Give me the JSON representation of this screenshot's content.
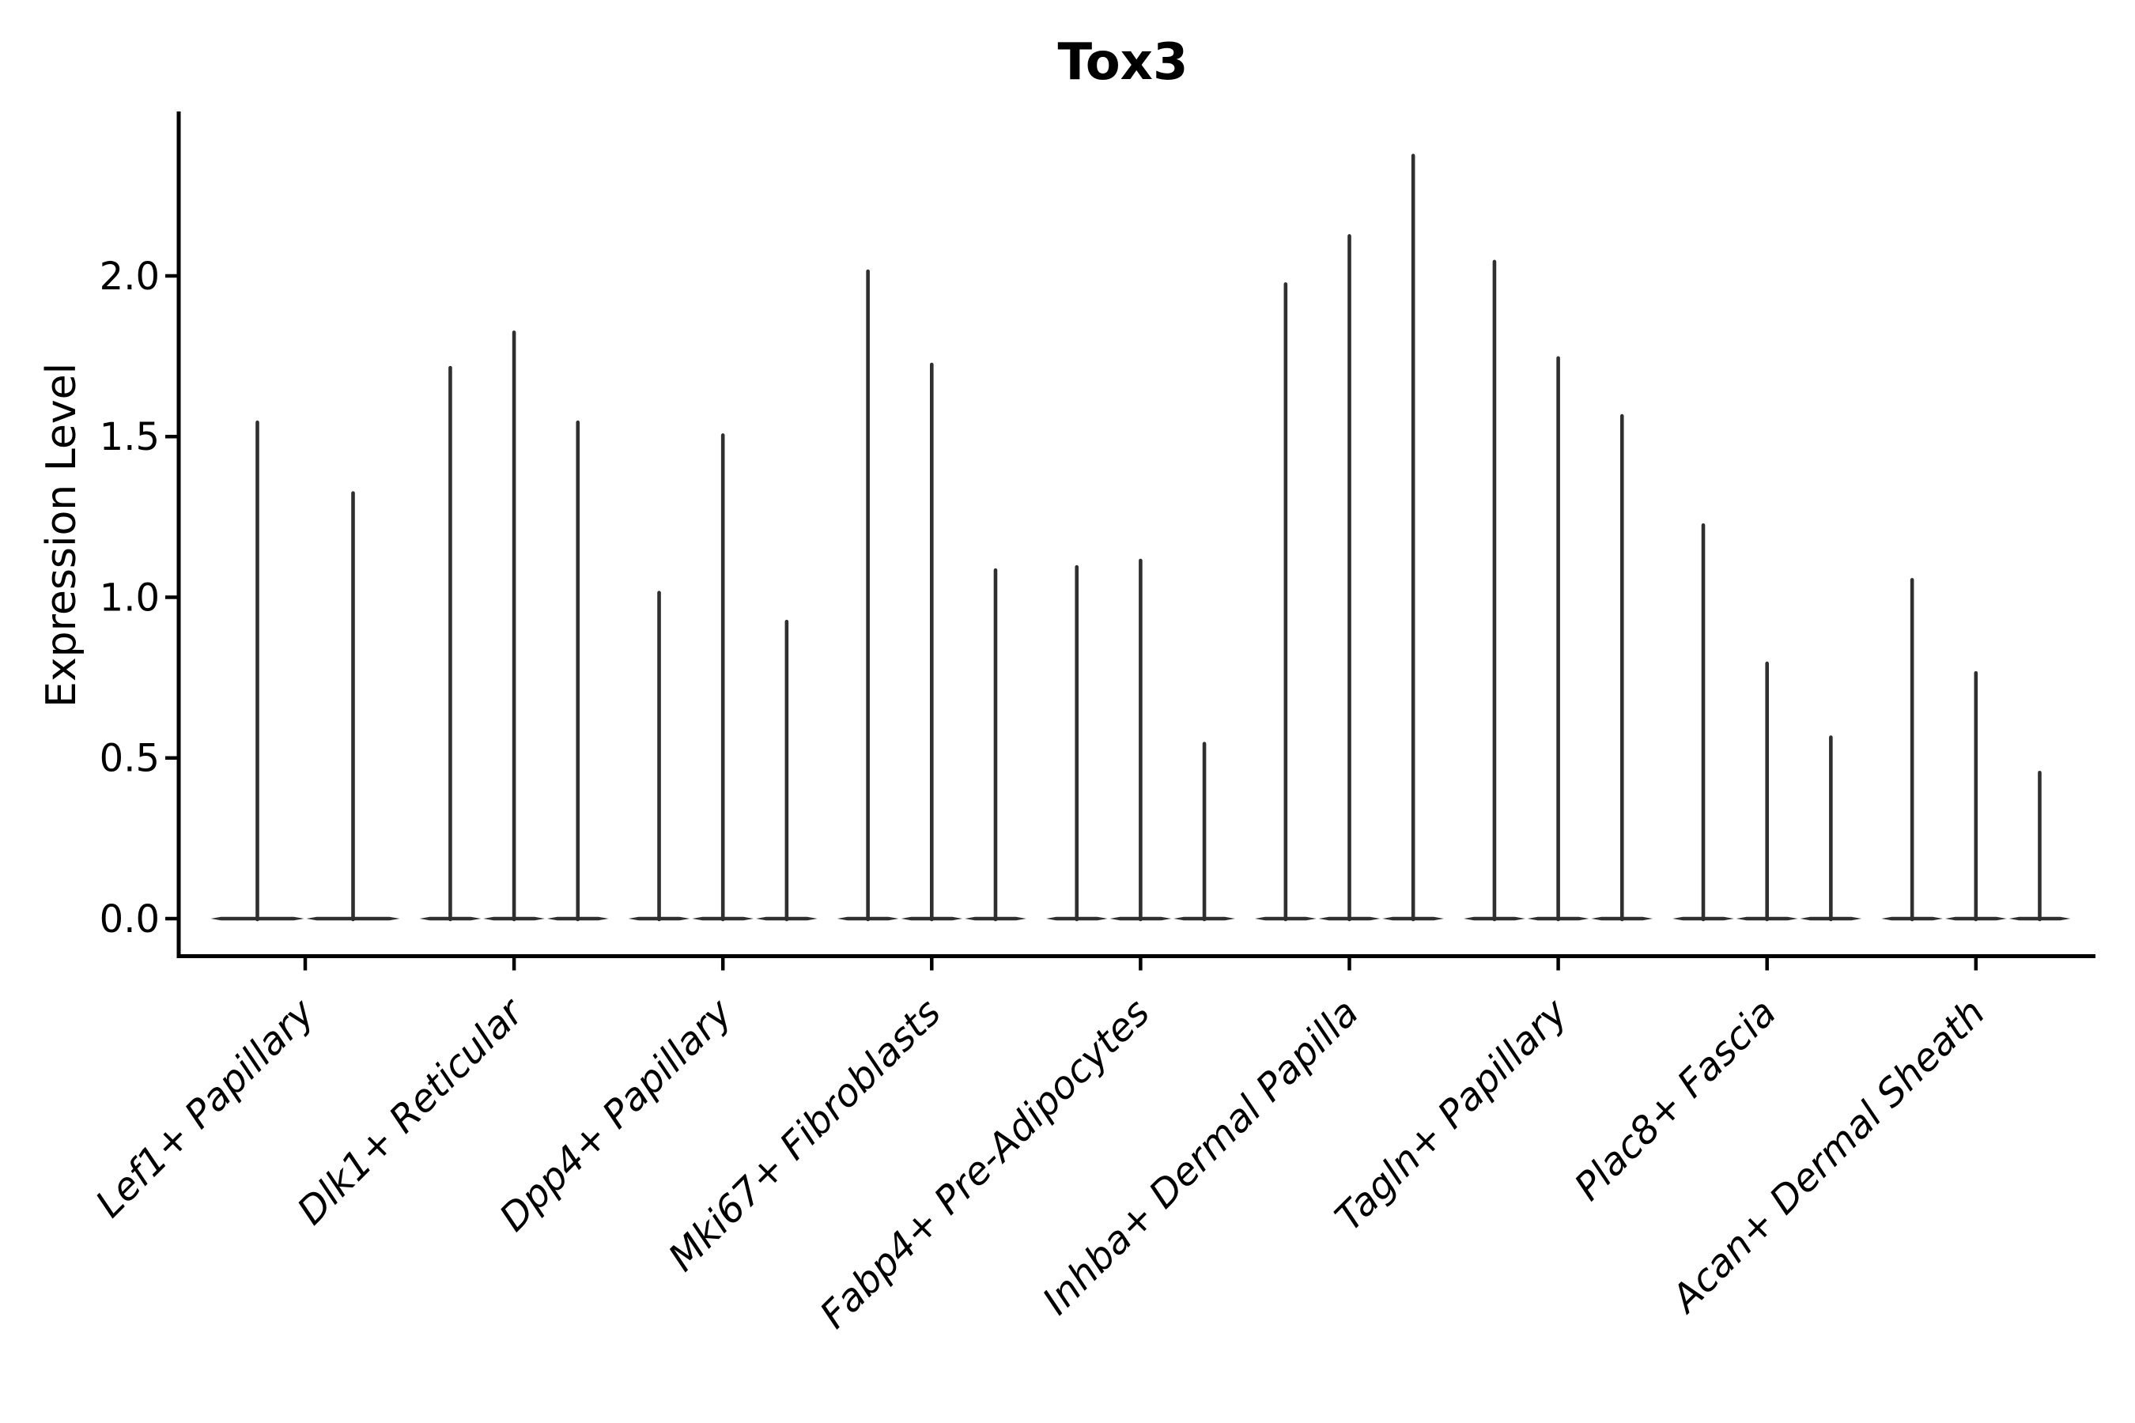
{
  "chart_data": {
    "type": "violin",
    "title": "Tox3",
    "ylabel": "Expression Level",
    "xlabel": "",
    "categories": [
      "Lef1+ Papillary",
      "Dlk1+ Reticular",
      "Dpp4+ Papillary",
      "Mki67+ Fibroblasts",
      "Fabp4+ Pre-Adipocytes",
      "Inhba+ Dermal Papilla",
      "Tagln+ Papillary",
      "Plac8+ Fascia",
      "Acan+ Dermal Sheath"
    ],
    "violin_max_expression": [
      [
        1.55,
        1.33
      ],
      [
        1.72,
        1.83,
        1.55
      ],
      [
        1.02,
        1.51,
        0.93
      ],
      [
        2.02,
        1.73,
        1.09
      ],
      [
        1.1,
        1.12,
        0.55
      ],
      [
        1.98,
        2.13,
        2.38
      ],
      [
        2.05,
        1.75,
        1.57
      ],
      [
        1.23,
        0.8,
        0.57
      ],
      [
        1.06,
        0.77,
        0.46
      ]
    ],
    "violin_baseline_value": 0.0,
    "yticks": [
      0.0,
      0.5,
      1.0,
      1.5,
      2.0
    ],
    "ytick_labels": [
      "0.0",
      "0.5",
      "1.0",
      "1.5",
      "2.0"
    ],
    "ylim": [
      -0.12,
      2.51
    ],
    "grid": false,
    "legend": "none",
    "colors": {
      "violin": "#2f2f2f",
      "axis": "#000000",
      "text": "#000000",
      "background": "#ffffff"
    }
  }
}
